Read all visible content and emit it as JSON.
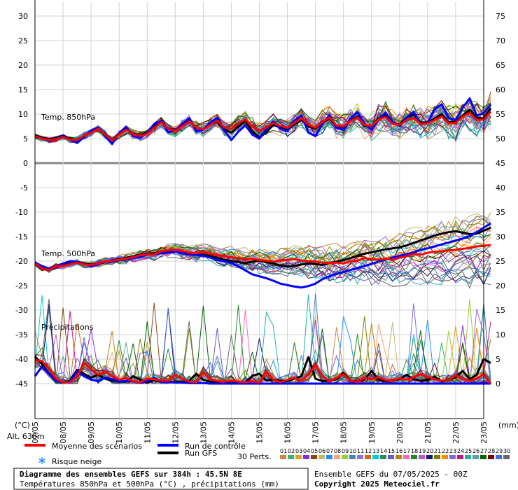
{
  "chart_data": {
    "type": "line",
    "title": "Diagramme des ensembles GEFS sur 384h : 45.5N 8E",
    "subtitle": "Températures 850hPa et 500hPa (°C) , précipitations (mm)",
    "left_axis_unit": "(°C)",
    "right_axis_unit": "(mm)",
    "left_ticks": [
      30,
      25,
      20,
      15,
      10,
      5,
      0,
      -5,
      -10,
      -15,
      -20,
      -25,
      -30,
      -35,
      -40,
      -45
    ],
    "right_ticks": [
      75,
      70,
      65,
      60,
      55,
      50,
      45,
      40,
      35,
      30,
      25,
      20,
      15,
      10,
      5,
      0
    ],
    "ylim_left": [
      -45,
      30
    ],
    "ylim_right": [
      0,
      75
    ],
    "x_dates": [
      "07/05",
      "08/05",
      "09/05",
      "10/05",
      "11/05",
      "12/05",
      "13/05",
      "14/05",
      "15/05",
      "16/05",
      "17/05",
      "18/05",
      "19/05",
      "20/05",
      "21/05",
      "22/05",
      "23/05"
    ],
    "x_step_hours": 6,
    "panel_labels": {
      "t850": "Temp. 850hPa",
      "t500": "Temp. 500hPa",
      "precip": "Précipitations"
    },
    "altitude": "Alt. 638m",
    "series": [
      {
        "name": "Moyenne des scénarios",
        "color": "#ff0000",
        "width": 3,
        "t850": [
          5.5,
          5.0,
          4.7,
          4.9,
          5.3,
          4.8,
          4.7,
          5.6,
          6.2,
          7.0,
          5.8,
          4.6,
          5.8,
          6.8,
          5.9,
          5.5,
          6.0,
          7.2,
          8.3,
          7.0,
          6.6,
          7.5,
          8.5,
          7.2,
          6.9,
          7.8,
          8.6,
          7.3,
          7.0,
          8.1,
          8.9,
          7.4,
          6.6,
          7.3,
          8.2,
          7.6,
          7.2,
          8.2,
          9.2,
          7.8,
          7.2,
          8.4,
          9.3,
          7.7,
          7.5,
          8.6,
          9.3,
          7.8,
          7.6,
          8.9,
          9.4,
          8.0,
          7.8,
          8.8,
          9.2,
          8.0,
          8.1,
          8.8,
          9.5,
          8.1,
          8.2,
          9.5,
          10.3,
          8.8,
          8.9,
          10.5
        ],
        "t500": [
          -20.5,
          -21.5,
          -21.8,
          -21.0,
          -21.0,
          -20.6,
          -20.3,
          -20.7,
          -20.8,
          -20.5,
          -20.0,
          -19.9,
          -19.7,
          -19.5,
          -19.2,
          -18.8,
          -18.6,
          -18.6,
          -18.0,
          -17.8,
          -17.7,
          -17.9,
          -18.3,
          -18.4,
          -18.2,
          -18.5,
          -18.8,
          -19.0,
          -19.2,
          -19.4,
          -19.6,
          -19.5,
          -19.8,
          -19.9,
          -20.1,
          -19.9,
          -19.7,
          -19.6,
          -19.9,
          -20.0,
          -20.1,
          -20.3,
          -20.4,
          -20.3,
          -20.5,
          -20.0,
          -19.9,
          -19.4,
          -19.6,
          -19.7,
          -19.5,
          -19.8,
          -19.3,
          -19.0,
          -18.5,
          -18.7,
          -18.3,
          -18.1,
          -18.0,
          -17.8,
          -17.7,
          -17.5,
          -17.3,
          -17.0,
          -16.9,
          -16.7
        ],
        "precip": [
          4.8,
          4.6,
          3.0,
          1.0,
          0.2,
          0.3,
          1.5,
          4.2,
          3.0,
          1.8,
          2.5,
          1.5,
          0.8,
          1.1,
          0.5,
          0.3,
          1.0,
          0.9,
          0.6,
          0.6,
          1.8,
          1.0,
          0.4,
          0.3,
          2.3,
          0.9,
          0.5,
          0.4,
          0.6,
          0.4,
          0.3,
          0.5,
          0.2,
          2.5,
          0.8,
          0.3,
          0.8,
          1.2,
          0.6,
          1.8,
          3.8,
          1.6,
          0.4,
          1.2,
          1.9,
          0.6,
          0.3,
          1.2,
          0.9,
          1.3,
          0.7,
          0.6,
          1.1,
          0.8,
          1.3,
          1.9,
          1.4,
          0.9,
          0.6,
          0.7,
          1.7,
          1.0,
          0.6,
          1.0,
          2.0,
          0.0
        ]
      },
      {
        "name": "Run de contrôle",
        "color": "#0000ff",
        "width": 3,
        "t850": [
          5.3,
          5.1,
          4.5,
          5.0,
          5.5,
          4.8,
          4.1,
          5.3,
          6.6,
          7.2,
          5.5,
          3.9,
          6.0,
          7.4,
          5.5,
          5.2,
          6.2,
          8.0,
          8.6,
          6.3,
          6.7,
          8.0,
          9.2,
          6.5,
          6.8,
          8.3,
          9.2,
          6.7,
          4.7,
          6.4,
          7.7,
          5.8,
          5.0,
          6.9,
          8.5,
          7.0,
          6.5,
          8.7,
          9.7,
          6.3,
          5.5,
          8.0,
          9.8,
          7.2,
          6.8,
          9.1,
          10.4,
          8.0,
          6.8,
          8.9,
          10.3,
          8.4,
          7.6,
          9.3,
          10.5,
          7.9,
          8.2,
          11.0,
          12.0,
          9.2,
          8.8,
          11.3,
          13.2,
          9.7,
          10.2,
          12.0
        ],
        "t500": [
          -20.3,
          -21.0,
          -21.5,
          -21.0,
          -20.5,
          -20.0,
          -20.2,
          -20.6,
          -21.0,
          -20.7,
          -20.1,
          -20.0,
          -19.8,
          -19.7,
          -19.4,
          -19.1,
          -18.7,
          -18.6,
          -18.4,
          -18.3,
          -18.1,
          -18.4,
          -18.6,
          -18.8,
          -18.9,
          -19.3,
          -19.8,
          -20.0,
          -20.4,
          -21.1,
          -21.9,
          -22.7,
          -23.1,
          -23.5,
          -24.0,
          -24.6,
          -24.9,
          -25.2,
          -25.4,
          -25.1,
          -24.6,
          -23.7,
          -23.1,
          -22.6,
          -22.2,
          -21.8,
          -21.4,
          -21.0,
          -20.6,
          -20.1,
          -19.7,
          -19.3,
          -18.9,
          -18.6,
          -18.2,
          -17.7,
          -17.4,
          -17.0,
          -16.6,
          -16.2,
          -15.8,
          -15.4,
          -14.9,
          -14.1,
          -13.2,
          -12.3
        ],
        "precip": [
          1.5,
          3.5,
          2.0,
          0.5,
          0.2,
          0.4,
          2.5,
          1.5,
          0.8,
          0.5,
          1.2,
          0.9,
          0.5,
          0.5,
          0.5,
          0.2,
          0.5,
          1.2,
          0.3,
          0.3,
          0.2,
          0.2,
          0.1,
          0.1,
          0.1,
          0.0,
          0.0,
          0.0,
          0.0,
          0.0,
          0.0,
          0.0,
          0.0,
          0.0,
          0.0,
          0.0,
          0.0,
          0.0,
          0.0,
          0.0,
          0.0,
          0.0,
          0.0,
          0.0,
          0.0,
          0.0,
          0.0,
          0.0,
          0.0,
          0.0,
          0.0,
          0.0,
          0.0,
          0.0,
          0.0,
          0.0,
          0.0,
          0.0,
          0.0,
          0.0,
          0.0,
          0.0,
          0.0,
          0.0,
          0.0,
          0.0
        ]
      },
      {
        "name": "Run GFS",
        "color": "#000000",
        "width": 3,
        "t850": [
          5.6,
          5.2,
          4.9,
          5.1,
          5.6,
          5.0,
          4.6,
          5.5,
          6.4,
          7.1,
          5.9,
          4.7,
          6.0,
          7.0,
          6.0,
          5.6,
          6.3,
          7.6,
          8.4,
          7.0,
          6.8,
          7.7,
          8.7,
          7.2,
          6.9,
          7.9,
          8.4,
          6.9,
          6.2,
          7.5,
          8.6,
          6.5,
          5.2,
          6.3,
          7.8,
          7.3,
          6.8,
          7.9,
          8.8,
          7.5,
          7.0,
          8.2,
          9.1,
          7.5,
          7.3,
          8.7,
          9.5,
          7.6,
          7.5,
          9.1,
          9.8,
          8.1,
          7.9,
          9.3,
          9.9,
          8.3,
          8.3,
          9.1,
          10.0,
          8.3,
          8.5,
          9.7,
          10.9,
          9.3,
          9.1,
          11.2
        ],
        "t500": [
          -20.4,
          -21.2,
          -21.6,
          -21.2,
          -20.8,
          -20.4,
          -20.1,
          -20.5,
          -20.7,
          -20.5,
          -20.1,
          -19.8,
          -19.6,
          -19.4,
          -19.0,
          -18.7,
          -18.5,
          -18.4,
          -18.1,
          -17.9,
          -17.7,
          -17.9,
          -18.4,
          -18.6,
          -18.7,
          -19.0,
          -19.3,
          -19.7,
          -20.0,
          -20.2,
          -20.4,
          -20.1,
          -19.9,
          -20.2,
          -20.5,
          -20.9,
          -21.1,
          -21.0,
          -20.7,
          -20.5,
          -20.6,
          -20.8,
          -20.4,
          -20.1,
          -19.8,
          -19.4,
          -18.9,
          -18.5,
          -18.2,
          -17.9,
          -17.6,
          -17.4,
          -17.2,
          -16.8,
          -16.3,
          -15.8,
          -15.3,
          -14.8,
          -14.4,
          -14.1,
          -13.9,
          -14.2,
          -14.5,
          -14.4,
          -13.8,
          -13.2
        ],
        "precip": [
          5.5,
          4.0,
          2.0,
          0.8,
          0.2,
          0.6,
          2.8,
          2.0,
          1.2,
          1.8,
          1.0,
          0.6,
          0.4,
          0.4,
          1.5,
          0.8,
          0.2,
          0.7,
          0.4,
          0.3,
          0.4,
          0.3,
          0.6,
          2.0,
          0.8,
          0.4,
          0.2,
          0.3,
          0.5,
          0.2,
          0.3,
          1.6,
          2.0,
          0.6,
          0.8,
          0.6,
          0.5,
          1.0,
          1.5,
          5.4,
          1.0,
          0.5,
          0.6,
          0.9,
          2.2,
          0.6,
          0.4,
          0.8,
          2.6,
          0.8,
          0.5,
          0.7,
          0.9,
          1.8,
          0.9,
          0.6,
          0.8,
          1.4,
          0.5,
          0.7,
          1.3,
          2.6,
          0.9,
          1.8,
          5.0,
          4.2
        ]
      }
    ],
    "perturbations": {
      "count_label": "30 Perts.",
      "numbers": [
        "01",
        "02",
        "03",
        "04",
        "05",
        "06",
        "07",
        "08",
        "09",
        "10",
        "11",
        "12",
        "13",
        "14",
        "15",
        "16",
        "17",
        "18",
        "19",
        "20",
        "21",
        "22",
        "23",
        "24",
        "25",
        "26",
        "27",
        "28",
        "29",
        "30"
      ],
      "colors": [
        "#cd853f",
        "#3cb371",
        "#daa520",
        "#8a2be2",
        "#8b4513",
        "#bdb76b",
        "#1e90ff",
        "#ffa07a",
        "#9acd32",
        "#4682b4",
        "#9370db",
        "#d2691e",
        "#00ced1",
        "#2e8b57",
        "#6a5acd",
        "#b8860b",
        "#ff69b4",
        "#228b22",
        "#ba55d3",
        "#191970",
        "#808000",
        "#ff8c00",
        "#7b68ee",
        "#c71585",
        "#20b2aa",
        "#5f9ea0",
        "#006400",
        "#800000",
        "#4169e1",
        "#696969"
      ]
    },
    "legend": {
      "mean": "Moyenne des scénarios",
      "control": "Run de contrôle",
      "gfs": "Run GFS",
      "snow": "Risque neige",
      "snow_icon": "snowflake-icon"
    },
    "info": {
      "ensemble": "Ensemble GEFS du 07/05/2025 - 00Z",
      "copyright": "Copyright 2025 Meteociel.fr"
    }
  }
}
